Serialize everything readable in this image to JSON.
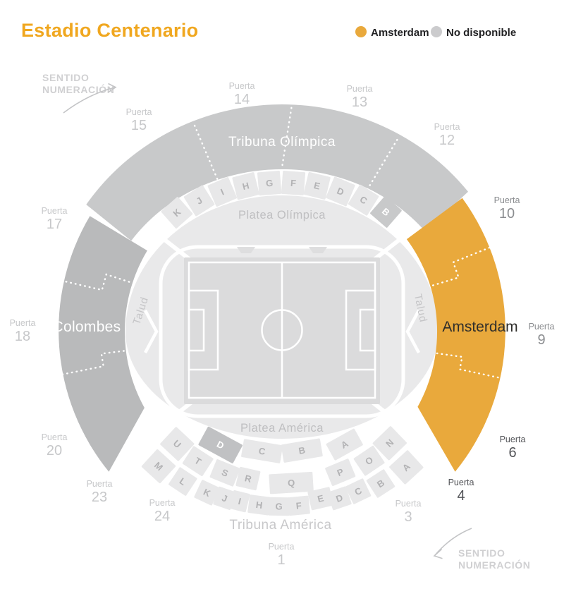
{
  "title": "Estadio Centenario",
  "legend": [
    {
      "label": "Amsterdam",
      "color": "#E9A93C"
    },
    {
      "label": "No disponible",
      "color": "#CBCBCD"
    }
  ],
  "direction_note": {
    "line1": "SENTIDO",
    "line2": "NUMERACIÓN"
  },
  "stands": {
    "tribuna_olimpica": "Tribuna Olímpica",
    "platea_olimpica": "Platea Olímpica",
    "colombes": "Colombes",
    "amsterdam": "Amsterdam",
    "talud_left": "Talud",
    "talud_right": "Talud",
    "platea_america": "Platea América",
    "tribuna_america": "Tribuna América"
  },
  "seat_rows": {
    "olimpica_ring": [
      "K",
      "J",
      "I",
      "H",
      "G",
      "F",
      "E",
      "D",
      "C",
      "B"
    ],
    "america_inner": [
      "U",
      "D",
      "C",
      "B",
      "A",
      "N"
    ],
    "america_middle": [
      "M",
      "T",
      "S",
      "R",
      "Q",
      "P",
      "O",
      "A"
    ],
    "america_outer": [
      "L",
      "K",
      "J",
      "I",
      "H",
      "G",
      "F",
      "E",
      "D",
      "C",
      "B"
    ]
  },
  "seat_rows_highlight": {
    "olimpica_ring_index": 9,
    "america_inner_index": 1
  },
  "gates": [
    {
      "label": "Puerta",
      "number": "15",
      "tone": "light"
    },
    {
      "label": "Puerta",
      "number": "14",
      "tone": "light"
    },
    {
      "label": "Puerta",
      "number": "13",
      "tone": "light"
    },
    {
      "label": "Puerta",
      "number": "12",
      "tone": "light"
    },
    {
      "label": "Puerta",
      "number": "17",
      "tone": "light"
    },
    {
      "label": "Puerta",
      "number": "18",
      "tone": "light"
    },
    {
      "label": "Puerta",
      "number": "20",
      "tone": "light"
    },
    {
      "label": "Puerta",
      "number": "23",
      "tone": "light"
    },
    {
      "label": "Puerta",
      "number": "24",
      "tone": "light"
    },
    {
      "label": "Puerta",
      "number": "1",
      "tone": "light"
    },
    {
      "label": "Puerta",
      "number": "3",
      "tone": "light"
    },
    {
      "label": "Puerta",
      "number": "4",
      "tone": "dark"
    },
    {
      "label": "Puerta",
      "number": "6",
      "tone": "dark"
    },
    {
      "label": "Puerta",
      "number": "9",
      "tone": "medium"
    },
    {
      "label": "Puerta",
      "number": "10",
      "tone": "medium"
    }
  ],
  "colors": {
    "title": "#F0A71F",
    "available": "#E9A93C",
    "stand": "#C8C9CA",
    "stand_dark": "#B9BABB",
    "bowl": "#E9E9EA",
    "field": "#DBDBDC",
    "box": "#E8E8E9",
    "box_letter": "#B2B2B4",
    "highlight_box_top": "#C8C9CA",
    "highlight_box_bottom": "#C0C1C3"
  }
}
